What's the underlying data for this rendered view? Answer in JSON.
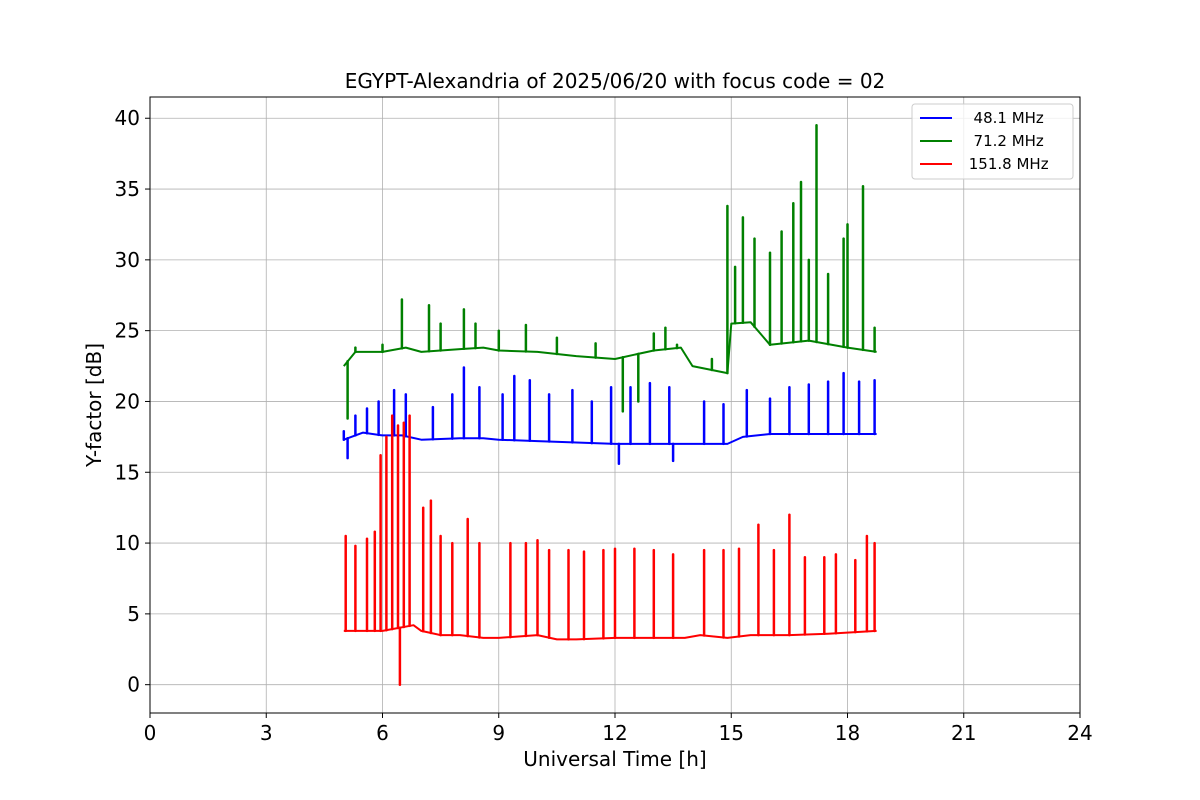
{
  "chart_data": {
    "type": "line",
    "title": "EGYPT-Alexandria of 2025/06/20 with focus code = 02",
    "xlabel": "Universal Time [h]",
    "ylabel": "Y-factor [dB]",
    "xlim": [
      0,
      24
    ],
    "ylim": [
      -2,
      41.5
    ],
    "xticks": [
      0,
      3,
      6,
      9,
      12,
      15,
      18,
      21,
      24
    ],
    "yticks": [
      0,
      5,
      10,
      15,
      20,
      25,
      30,
      35,
      40
    ],
    "grid": true,
    "legend_position": "top-right",
    "series": [
      {
        "name": "  48.1 MHz",
        "color": "#0000ff",
        "baseline": [
          [
            5.0,
            17.3
          ],
          [
            5.5,
            17.8
          ],
          [
            6.0,
            17.6
          ],
          [
            6.5,
            17.6
          ],
          [
            7.0,
            17.3
          ],
          [
            8.0,
            17.4
          ],
          [
            8.6,
            17.4
          ],
          [
            9.0,
            17.3
          ],
          [
            10.0,
            17.2
          ],
          [
            11.0,
            17.1
          ],
          [
            12.0,
            17.0
          ],
          [
            13.0,
            17.0
          ],
          [
            13.7,
            17.0
          ],
          [
            14.2,
            17.0
          ],
          [
            14.9,
            17.0
          ],
          [
            15.3,
            17.5
          ],
          [
            16.0,
            17.7
          ],
          [
            17.0,
            17.7
          ],
          [
            18.0,
            17.7
          ],
          [
            18.75,
            17.7
          ]
        ],
        "peaks": [
          [
            5.0,
            17.9
          ],
          [
            5.1,
            16.0
          ],
          [
            5.3,
            19.0
          ],
          [
            5.6,
            19.5
          ],
          [
            5.9,
            20.0
          ],
          [
            6.3,
            20.8
          ],
          [
            6.6,
            20.5
          ],
          [
            7.3,
            19.6
          ],
          [
            7.8,
            20.5
          ],
          [
            8.1,
            22.4
          ],
          [
            8.5,
            21.0
          ],
          [
            9.1,
            20.5
          ],
          [
            9.4,
            21.8
          ],
          [
            9.8,
            21.5
          ],
          [
            10.3,
            20.5
          ],
          [
            10.9,
            20.8
          ],
          [
            11.4,
            20.0
          ],
          [
            11.9,
            21.0
          ],
          [
            12.1,
            15.6
          ],
          [
            12.4,
            21.0
          ],
          [
            12.9,
            21.3
          ],
          [
            13.4,
            21.0
          ],
          [
            13.5,
            15.8
          ],
          [
            14.3,
            20.0
          ],
          [
            14.8,
            19.8
          ],
          [
            15.4,
            20.8
          ],
          [
            16.0,
            20.2
          ],
          [
            16.5,
            21.0
          ],
          [
            17.0,
            21.2
          ],
          [
            17.5,
            21.4
          ],
          [
            17.9,
            22.0
          ],
          [
            18.3,
            21.4
          ],
          [
            18.7,
            21.5
          ]
        ]
      },
      {
        "name": "  71.2 MHz",
        "color": "#008000",
        "baseline": [
          [
            5.0,
            22.5
          ],
          [
            5.3,
            23.5
          ],
          [
            6.0,
            23.5
          ],
          [
            6.6,
            23.8
          ],
          [
            7.0,
            23.5
          ],
          [
            8.0,
            23.7
          ],
          [
            8.6,
            23.8
          ],
          [
            9.0,
            23.6
          ],
          [
            10.0,
            23.5
          ],
          [
            11.0,
            23.2
          ],
          [
            12.0,
            23.0
          ],
          [
            12.5,
            23.3
          ],
          [
            13.0,
            23.6
          ],
          [
            13.7,
            23.8
          ],
          [
            14.0,
            22.5
          ],
          [
            14.9,
            22.0
          ],
          [
            15.0,
            25.5
          ],
          [
            15.5,
            25.6
          ],
          [
            16.0,
            24.0
          ],
          [
            17.0,
            24.3
          ],
          [
            18.0,
            23.8
          ],
          [
            18.75,
            23.5
          ]
        ],
        "peaks": [
          [
            5.1,
            18.8
          ],
          [
            5.3,
            23.8
          ],
          [
            6.0,
            24.0
          ],
          [
            6.5,
            27.2
          ],
          [
            7.2,
            26.8
          ],
          [
            7.5,
            25.5
          ],
          [
            8.1,
            26.5
          ],
          [
            8.4,
            25.5
          ],
          [
            9.0,
            25.0
          ],
          [
            9.7,
            25.4
          ],
          [
            10.5,
            24.5
          ],
          [
            11.5,
            24.1
          ],
          [
            12.2,
            19.3
          ],
          [
            12.6,
            20.0
          ],
          [
            13.0,
            24.8
          ],
          [
            13.3,
            25.2
          ],
          [
            13.6,
            24.0
          ],
          [
            14.5,
            23.0
          ],
          [
            14.9,
            33.8
          ],
          [
            15.1,
            29.5
          ],
          [
            15.3,
            33.0
          ],
          [
            15.6,
            31.5
          ],
          [
            16.0,
            30.5
          ],
          [
            16.3,
            32.0
          ],
          [
            16.6,
            34.0
          ],
          [
            16.8,
            35.5
          ],
          [
            17.0,
            30.0
          ],
          [
            17.2,
            39.5
          ],
          [
            17.5,
            29.0
          ],
          [
            17.9,
            31.5
          ],
          [
            18.0,
            32.5
          ],
          [
            18.4,
            35.2
          ],
          [
            18.7,
            25.2
          ]
        ]
      },
      {
        "name": " 151.8 MHz",
        "color": "#ff0000",
        "baseline": [
          [
            5.0,
            3.8
          ],
          [
            6.0,
            3.8
          ],
          [
            6.8,
            4.2
          ],
          [
            7.0,
            3.8
          ],
          [
            7.5,
            3.5
          ],
          [
            8.0,
            3.5
          ],
          [
            8.6,
            3.3
          ],
          [
            9.0,
            3.3
          ],
          [
            10.0,
            3.5
          ],
          [
            10.5,
            3.2
          ],
          [
            11.0,
            3.2
          ],
          [
            12.0,
            3.3
          ],
          [
            13.0,
            3.3
          ],
          [
            13.8,
            3.3
          ],
          [
            14.2,
            3.5
          ],
          [
            14.9,
            3.3
          ],
          [
            15.5,
            3.5
          ],
          [
            16.5,
            3.5
          ],
          [
            17.5,
            3.6
          ],
          [
            18.75,
            3.8
          ]
        ],
        "peaks": [
          [
            5.05,
            10.5
          ],
          [
            5.3,
            9.8
          ],
          [
            5.6,
            10.3
          ],
          [
            5.8,
            10.8
          ],
          [
            5.95,
            16.2
          ],
          [
            6.1,
            17.5
          ],
          [
            6.25,
            19.0
          ],
          [
            6.4,
            18.3
          ],
          [
            6.45,
            0.0
          ],
          [
            6.55,
            18.5
          ],
          [
            6.7,
            19.0
          ],
          [
            7.05,
            12.5
          ],
          [
            7.25,
            13.0
          ],
          [
            7.5,
            10.5
          ],
          [
            7.8,
            10.0
          ],
          [
            8.2,
            11.7
          ],
          [
            8.5,
            10.0
          ],
          [
            9.3,
            10.0
          ],
          [
            9.7,
            10.0
          ],
          [
            10.0,
            10.2
          ],
          [
            10.3,
            9.5
          ],
          [
            10.8,
            9.5
          ],
          [
            11.2,
            9.4
          ],
          [
            11.7,
            9.5
          ],
          [
            12.0,
            9.6
          ],
          [
            12.5,
            9.6
          ],
          [
            13.0,
            9.5
          ],
          [
            13.5,
            9.2
          ],
          [
            14.3,
            9.5
          ],
          [
            14.8,
            9.5
          ],
          [
            15.2,
            9.6
          ],
          [
            15.7,
            11.3
          ],
          [
            16.1,
            9.5
          ],
          [
            16.5,
            12.0
          ],
          [
            16.9,
            9.0
          ],
          [
            17.4,
            9.0
          ],
          [
            17.7,
            9.2
          ],
          [
            18.2,
            8.8
          ],
          [
            18.5,
            10.5
          ],
          [
            18.7,
            10.0
          ]
        ]
      }
    ]
  }
}
